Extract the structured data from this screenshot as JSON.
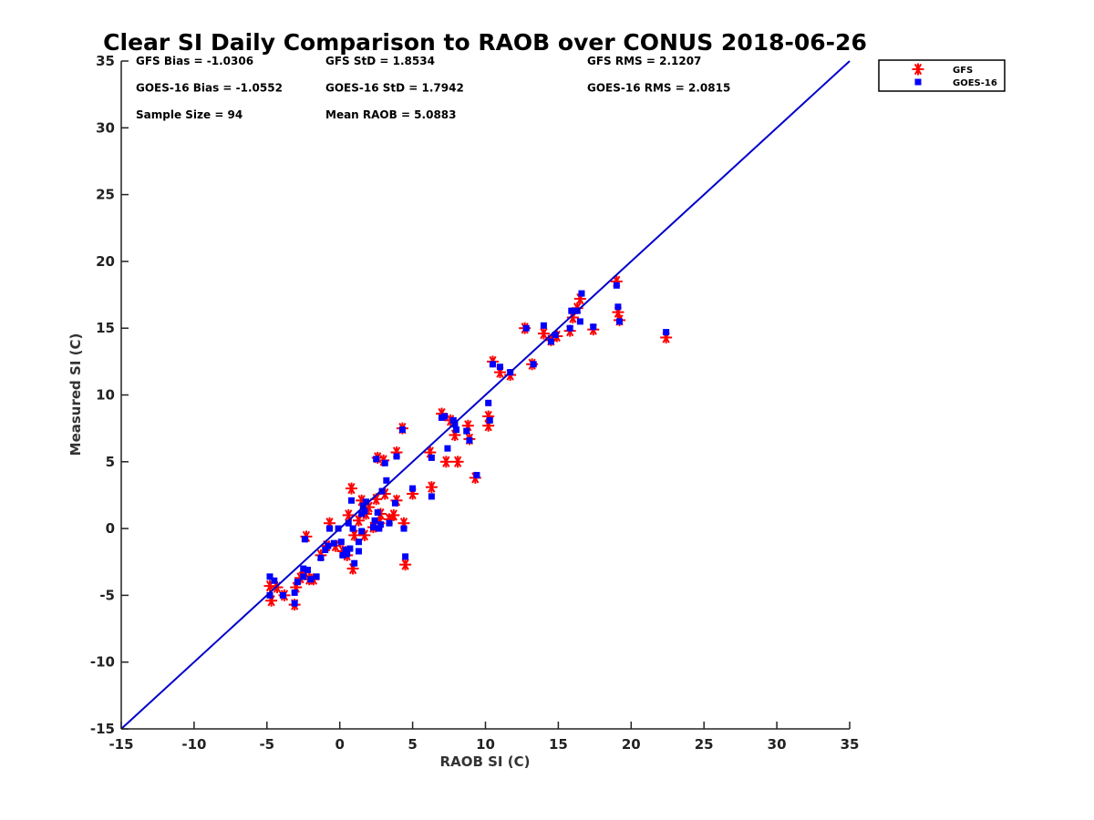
{
  "chart_data": {
    "type": "scatter",
    "title": "Clear SI Daily Comparison to RAOB over CONUS 2018-06-26",
    "xlabel": "RAOB SI (C)",
    "ylabel": "Measured SI (C)",
    "xlim": [
      -15,
      35
    ],
    "ylim": [
      -15,
      35
    ],
    "xticks": [
      -15,
      -10,
      -5,
      0,
      5,
      10,
      15,
      20,
      25,
      30,
      35
    ],
    "yticks": [
      -15,
      -10,
      -5,
      0,
      5,
      10,
      15,
      20,
      25,
      30,
      35
    ],
    "grid": false,
    "reference_line": {
      "from": [
        -15,
        -15
      ],
      "to": [
        35,
        35
      ],
      "color": "#0000cc"
    },
    "legend": {
      "placement": "outside-top-right",
      "entries": [
        {
          "name": "GFS",
          "marker": "asterisk",
          "color": "#ff0000"
        },
        {
          "name": "GOES-16",
          "marker": "square",
          "color": "#0000ff"
        }
      ]
    },
    "stats": [
      [
        "GFS Bias = -1.0306",
        "GFS StD = 1.8534",
        "GFS RMS = 2.1207"
      ],
      [
        "GOES-16 Bias = -1.0552",
        "GOES-16 StD = 1.7942",
        "GOES-16 RMS = 2.0815"
      ],
      [
        "Sample Size = 94",
        "Mean RAOB = 5.0883",
        ""
      ]
    ],
    "series": [
      {
        "name": "GFS",
        "marker": "asterisk",
        "color": "#ff0000",
        "points": [
          [
            -4.8,
            -4.3
          ],
          [
            -4.7,
            -5.4
          ],
          [
            -4.3,
            -4.4
          ],
          [
            -3.8,
            -5.0
          ],
          [
            -3.1,
            -5.7
          ],
          [
            -3.0,
            -4.4
          ],
          [
            -2.7,
            -3.7
          ],
          [
            -2.4,
            -3.3
          ],
          [
            -2.3,
            -0.6
          ],
          [
            -2.1,
            -3.8
          ],
          [
            -1.8,
            -3.8
          ],
          [
            -1.3,
            -2.0
          ],
          [
            -0.9,
            -1.3
          ],
          [
            -0.7,
            0.4
          ],
          [
            -0.3,
            -1.3
          ],
          [
            0.2,
            -1.7
          ],
          [
            0.5,
            -2.0
          ],
          [
            0.6,
            1.0
          ],
          [
            0.8,
            3.0
          ],
          [
            0.9,
            -3.0
          ],
          [
            1.0,
            -0.5
          ],
          [
            1.3,
            0.6
          ],
          [
            1.5,
            2.1
          ],
          [
            1.7,
            -0.5
          ],
          [
            1.8,
            1.1
          ],
          [
            2.0,
            1.6
          ],
          [
            2.3,
            0.1
          ],
          [
            2.5,
            2.2
          ],
          [
            2.6,
            5.3
          ],
          [
            2.7,
            0.4
          ],
          [
            2.8,
            1.1
          ],
          [
            3.0,
            5.1
          ],
          [
            3.1,
            2.6
          ],
          [
            3.4,
            0.7
          ],
          [
            3.7,
            1.0
          ],
          [
            3.9,
            2.1
          ],
          [
            3.9,
            5.7
          ],
          [
            4.3,
            7.5
          ],
          [
            4.4,
            0.4
          ],
          [
            4.5,
            -2.7
          ],
          [
            5.0,
            2.6
          ],
          [
            6.2,
            5.7
          ],
          [
            6.3,
            3.1
          ],
          [
            7.0,
            8.6
          ],
          [
            7.3,
            5.0
          ],
          [
            7.6,
            8.1
          ],
          [
            7.9,
            7.0
          ],
          [
            8.1,
            5.0
          ],
          [
            8.8,
            7.7
          ],
          [
            8.9,
            6.7
          ],
          [
            9.3,
            3.8
          ],
          [
            10.2,
            7.7
          ],
          [
            10.2,
            8.4
          ],
          [
            10.5,
            12.5
          ],
          [
            11.0,
            11.7
          ],
          [
            11.7,
            11.5
          ],
          [
            12.7,
            15.0
          ],
          [
            13.2,
            12.3
          ],
          [
            14.0,
            14.6
          ],
          [
            14.5,
            14.1
          ],
          [
            14.9,
            14.4
          ],
          [
            15.8,
            14.8
          ],
          [
            16.0,
            15.8
          ],
          [
            16.3,
            16.5
          ],
          [
            16.5,
            17.2
          ],
          [
            17.4,
            14.9
          ],
          [
            19.0,
            18.5
          ],
          [
            19.1,
            16.2
          ],
          [
            19.2,
            15.6
          ],
          [
            22.4,
            14.3
          ]
        ]
      },
      {
        "name": "GOES-16",
        "marker": "square",
        "color": "#0000ff",
        "points": [
          [
            -4.8,
            -3.6
          ],
          [
            -4.8,
            -5.0
          ],
          [
            -4.5,
            -3.9
          ],
          [
            -3.9,
            -5.0
          ],
          [
            -3.1,
            -5.6
          ],
          [
            -3.1,
            -4.8
          ],
          [
            -2.9,
            -4.0
          ],
          [
            -2.5,
            -3.0
          ],
          [
            -2.5,
            -3.6
          ],
          [
            -2.4,
            -0.8
          ],
          [
            -2.2,
            -3.1
          ],
          [
            -2.0,
            -3.8
          ],
          [
            -1.6,
            -3.6
          ],
          [
            -1.3,
            -2.2
          ],
          [
            -1.0,
            -1.6
          ],
          [
            -0.8,
            -1.3
          ],
          [
            -0.7,
            0.0
          ],
          [
            -0.4,
            -1.1
          ],
          [
            -0.1,
            0.0
          ],
          [
            0.1,
            -1.0
          ],
          [
            0.2,
            -2.0
          ],
          [
            0.4,
            -1.6
          ],
          [
            0.5,
            -1.9
          ],
          [
            0.6,
            0.4
          ],
          [
            0.7,
            -1.5
          ],
          [
            0.8,
            2.1
          ],
          [
            0.9,
            0.0
          ],
          [
            1.0,
            -2.6
          ],
          [
            1.3,
            -1.0
          ],
          [
            1.3,
            -1.7
          ],
          [
            1.5,
            -0.2
          ],
          [
            1.5,
            1.1
          ],
          [
            1.6,
            1.7
          ],
          [
            1.7,
            1.3
          ],
          [
            1.8,
            2.0
          ],
          [
            2.3,
            0.1
          ],
          [
            2.4,
            0.6
          ],
          [
            2.5,
            5.2
          ],
          [
            2.6,
            1.2
          ],
          [
            2.7,
            0.0
          ],
          [
            2.8,
            0.3
          ],
          [
            2.9,
            2.8
          ],
          [
            3.1,
            4.9
          ],
          [
            3.2,
            3.6
          ],
          [
            3.4,
            0.4
          ],
          [
            3.8,
            1.9
          ],
          [
            3.9,
            5.4
          ],
          [
            4.3,
            7.4
          ],
          [
            4.4,
            0.0
          ],
          [
            4.5,
            -2.1
          ],
          [
            5.0,
            3.0
          ],
          [
            6.3,
            5.3
          ],
          [
            6.3,
            2.4
          ],
          [
            7.0,
            8.3
          ],
          [
            7.2,
            8.4
          ],
          [
            7.4,
            6.0
          ],
          [
            7.8,
            8.1
          ],
          [
            7.9,
            7.8
          ],
          [
            8.0,
            7.4
          ],
          [
            8.7,
            7.3
          ],
          [
            8.9,
            6.6
          ],
          [
            9.4,
            4.0
          ],
          [
            10.2,
            9.4
          ],
          [
            10.3,
            8.1
          ],
          [
            10.5,
            12.3
          ],
          [
            11.0,
            12.1
          ],
          [
            11.7,
            11.7
          ],
          [
            12.8,
            15.0
          ],
          [
            13.3,
            12.3
          ],
          [
            14.0,
            15.2
          ],
          [
            14.5,
            14.0
          ],
          [
            14.8,
            14.5
          ],
          [
            15.8,
            15.0
          ],
          [
            15.9,
            16.3
          ],
          [
            16.3,
            16.3
          ],
          [
            16.5,
            15.5
          ],
          [
            16.6,
            17.6
          ],
          [
            17.4,
            15.1
          ],
          [
            19.0,
            18.2
          ],
          [
            19.1,
            16.6
          ],
          [
            19.2,
            15.5
          ],
          [
            22.4,
            14.7
          ]
        ]
      }
    ]
  }
}
